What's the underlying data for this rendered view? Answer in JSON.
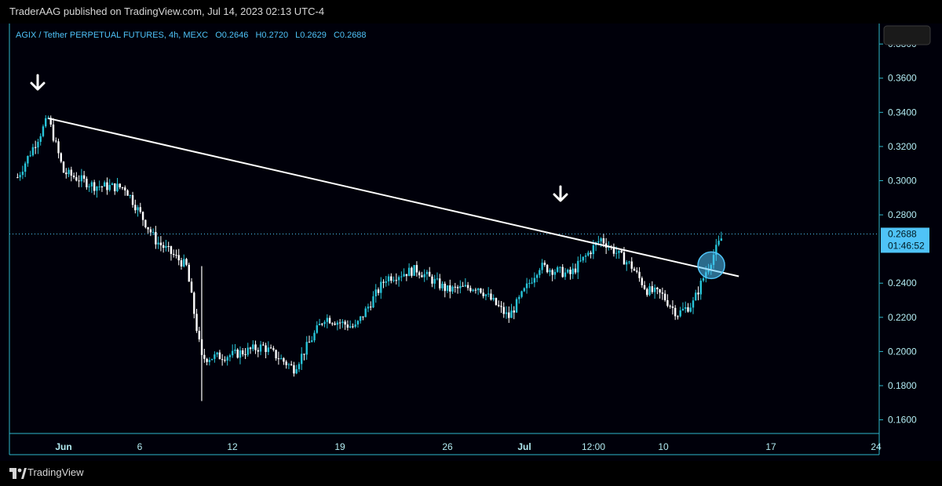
{
  "header": {
    "published": "TraderAAG published on TradingView.com, Jul 14, 2023 02:13 UTC-4"
  },
  "footer": {
    "brand": "TradingView"
  },
  "colors": {
    "background": "#000000",
    "up": "#27c4d8",
    "down": "#ffffff",
    "axis": "#2eb7c9",
    "text": "#b2ebf2",
    "trendline": "#ffffff",
    "highlight": "#4fc3f7"
  },
  "chart_data": {
    "type": "candlestick",
    "title": "AGIX / Tether PERPETUAL FUTURES, 4h, MEXC",
    "legend": {
      "symbol": "AGIX / Tether PERPETUAL FUTURES, 4h, MEXC",
      "open": "O0.2646",
      "high": "H0.2720",
      "low": "L0.2629",
      "close": "C0.2688"
    },
    "ylim": [
      0.152,
      0.392
    ],
    "y_ticks": [
      "0.3800",
      "0.3600",
      "0.3400",
      "0.3200",
      "0.3000",
      "0.2800",
      "0.2400",
      "0.2200",
      "0.2000",
      "0.1800",
      "0.1600"
    ],
    "x_ticks": [
      "Jun",
      "6",
      "12",
      "19",
      "26",
      "Jul",
      "12:00",
      "10",
      "17",
      "24"
    ],
    "last_price": "0.2688",
    "countdown": "01:46:52",
    "trendline": {
      "start": {
        "time": "May 31",
        "price": 0.3365
      },
      "end": {
        "time": "Jul 15",
        "price": 0.244
      }
    },
    "annotations": [
      "down-arrow near May 31 high",
      "down-arrow near Jul 7 high",
      "circle at trendline breakout"
    ],
    "key_points": [
      {
        "time": "May 29",
        "price": 0.302
      },
      {
        "time": "May 31",
        "price": 0.3365
      },
      {
        "time": "Jun 1",
        "price": 0.305
      },
      {
        "time": "Jun 3",
        "price": 0.297
      },
      {
        "time": "Jun 5",
        "price": 0.296
      },
      {
        "time": "Jun 7",
        "price": 0.265
      },
      {
        "time": "Jun 9",
        "price": 0.25
      },
      {
        "time": "Jun 10",
        "price": 0.196
      },
      {
        "time": "Jun 12",
        "price": 0.198
      },
      {
        "time": "Jun 14",
        "price": 0.203
      },
      {
        "time": "Jun 16",
        "price": 0.19
      },
      {
        "time": "Jun 18",
        "price": 0.22
      },
      {
        "time": "Jun 20",
        "price": 0.214
      },
      {
        "time": "Jun 22",
        "price": 0.243
      },
      {
        "time": "Jun 24",
        "price": 0.248
      },
      {
        "time": "Jun 26",
        "price": 0.236
      },
      {
        "time": "Jun 28",
        "price": 0.238
      },
      {
        "time": "Jun 30",
        "price": 0.22
      },
      {
        "time": "Jul 2",
        "price": 0.25
      },
      {
        "time": "Jul 4",
        "price": 0.245
      },
      {
        "time": "Jul 6",
        "price": 0.266
      },
      {
        "time": "Jul 8",
        "price": 0.25
      },
      {
        "time": "Jul 9",
        "price": 0.236
      },
      {
        "time": "Jul 10",
        "price": 0.233
      },
      {
        "time": "Jul 11",
        "price": 0.222
      },
      {
        "time": "Jul 12",
        "price": 0.228
      },
      {
        "time": "Jul 13",
        "price": 0.25
      },
      {
        "time": "Jul 14",
        "price": 0.2688
      }
    ]
  }
}
